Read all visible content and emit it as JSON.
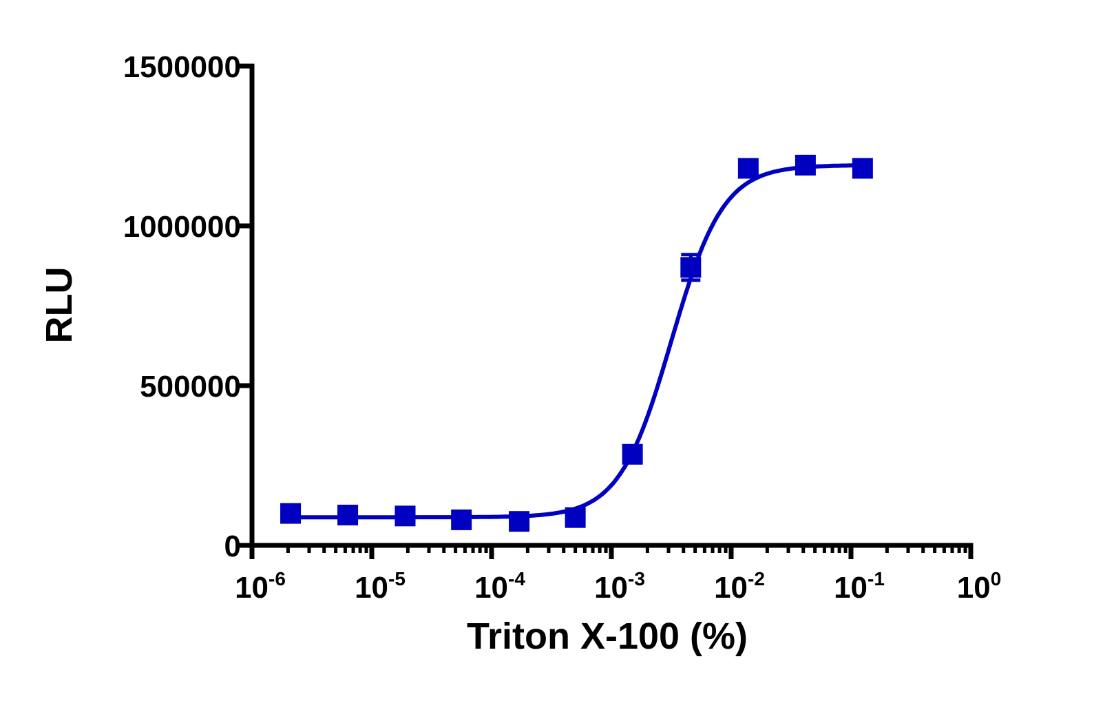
{
  "chart_data": {
    "type": "scatter",
    "title": "",
    "xlabel": "Triton X-100 (%)",
    "ylabel": "RLU",
    "xscale": "log",
    "xlim": [
      1e-06,
      1
    ],
    "ylim": [
      0,
      1500000
    ],
    "grid": false,
    "legend": "none",
    "x_tick_labels": [
      {
        "base": "10",
        "exp": "-6"
      },
      {
        "base": "10",
        "exp": "-5"
      },
      {
        "base": "10",
        "exp": "-4"
      },
      {
        "base": "10",
        "exp": "-3"
      },
      {
        "base": "10",
        "exp": "-2"
      },
      {
        "base": "10",
        "exp": "-1"
      },
      {
        "base": "10",
        "exp": "0"
      }
    ],
    "y_tick_labels": [
      "0",
      "500000",
      "1000000",
      "1500000"
    ],
    "series": [
      {
        "color": "#0000c0",
        "marker": "square",
        "x": [
          2.1e-06,
          6.3e-06,
          1.9e-05,
          5.6e-05,
          0.00017,
          0.0005,
          0.0015,
          0.0046,
          0.0139,
          0.0417,
          0.125
        ],
        "y": [
          100000,
          95000,
          92000,
          80000,
          75000,
          87000,
          285000,
          870000,
          1180000,
          1190000,
          1180000
        ],
        "yerr": [
          0,
          0,
          0,
          0,
          0,
          0,
          0,
          40000,
          0,
          0,
          0
        ],
        "fit": {
          "model": "sigmoidal dose-response",
          "bottom": 88000,
          "top": 1190000,
          "log_ec50": -2.5,
          "hill": 2.0
        }
      }
    ]
  }
}
